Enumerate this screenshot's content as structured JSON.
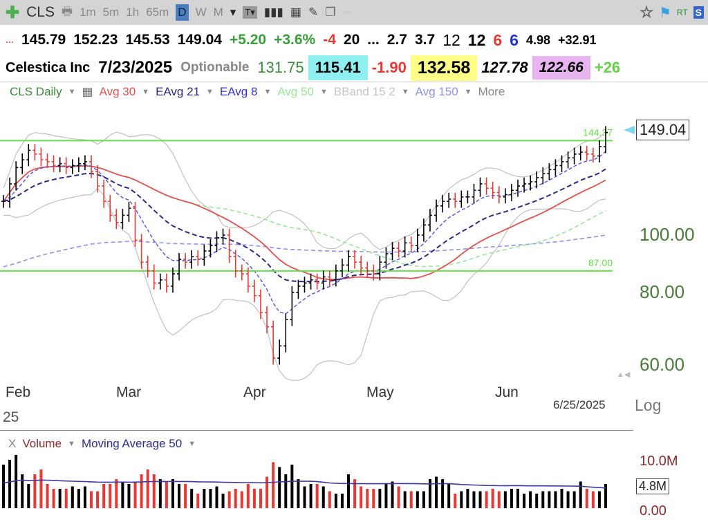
{
  "toolbar": {
    "symbol": "CLS",
    "intervals": [
      "1m",
      "5m",
      "1h",
      "65m",
      "D",
      "W",
      "M"
    ],
    "active_interval": "D",
    "rt": "RT",
    "s": "S"
  },
  "quote_row": {
    "open": "145.79",
    "high": "152.23",
    "low": "145.53",
    "close": "149.04",
    "change": "+5.20",
    "change_pct": "+3.6%",
    "v1": "-4",
    "v2": "20",
    "v3": "...",
    "v4": "2.7",
    "v5": "3.7",
    "v6": "12",
    "v7": "12",
    "v8": "6",
    "v9": "6",
    "v10": "4.98",
    "v11": "+32.91"
  },
  "info_row": {
    "company": "Celestica Inc",
    "date": "7/23/2025",
    "optionable": "Optionable",
    "f1": "131.75",
    "f2": "115.41",
    "f3": "-1.90",
    "f4": "132.58",
    "f5": "127.78",
    "f6": "122.66",
    "f7": "+26"
  },
  "indicators": {
    "chart": "CLS Daily",
    "avg30": "Avg 30",
    "eavg21": "EAvg 21",
    "eavg8": "EAvg 8",
    "avg50": "Avg 50",
    "bband": "BBand 15 2",
    "avg150": "Avg 150",
    "more": "More"
  },
  "volume_legend": {
    "close": "X",
    "volume": "Volume",
    "ma": "Moving Average 50"
  },
  "colors": {
    "up": "#000000",
    "down": "#e53935",
    "avg30": "#e05050",
    "eavg21": "#2a2a80",
    "eavg8": "#5050e0",
    "avg50": "#9be59b",
    "bband": "#c0c0c0",
    "avg150": "#9090e8",
    "hline": "#66e04a"
  },
  "chart_data": {
    "type": "ohlc-bar",
    "scale": "log",
    "ylim": [
      55,
      160
    ],
    "y_ticks": [
      "100.00",
      "80.00",
      "60.00"
    ],
    "y_tick_values": [
      100,
      80,
      60
    ],
    "x_ticks": [
      "Feb",
      "Mar",
      "Apr",
      "May",
      "Jun"
    ],
    "year_label": "25",
    "last_date": "6/25/2025",
    "scale_label": "Log",
    "last_price": "149.04",
    "hlines": [
      {
        "value": 144.37,
        "label": "144.37"
      },
      {
        "value": 87.0,
        "label": "87.00"
      }
    ],
    "close": [
      114,
      122,
      130,
      134,
      139,
      137,
      134,
      133,
      131,
      132,
      130,
      131,
      132,
      133,
      128,
      121,
      114,
      108,
      105,
      108,
      111,
      98,
      90,
      87,
      83,
      84,
      82,
      86,
      91,
      90,
      92,
      91,
      94,
      96,
      99,
      100,
      92,
      87,
      86,
      82,
      79,
      74,
      70,
      62,
      65,
      72,
      80,
      82,
      83,
      84,
      83,
      85,
      84,
      87,
      89,
      92,
      90,
      88,
      87,
      86,
      90,
      93,
      95,
      94,
      97,
      96,
      100,
      104,
      108,
      112,
      114,
      115,
      114,
      116,
      116,
      119,
      122,
      120,
      118,
      116,
      117,
      119,
      121,
      122,
      123,
      125,
      127,
      129,
      131,
      133,
      135,
      137,
      138,
      137,
      136,
      141,
      149
    ],
    "volume_ticks": [
      "10.0M",
      "4.8M",
      "0.00"
    ],
    "volume_m": [
      9,
      10,
      11,
      7,
      5,
      7,
      8,
      5,
      4,
      4,
      4,
      4.5,
      4,
      4.5,
      3.5,
      3.5,
      5,
      5,
      6,
      5.5,
      5,
      5.5,
      7,
      8,
      7,
      6,
      5.5,
      6,
      5,
      5,
      4,
      3,
      4,
      4,
      4.5,
      3,
      3.5,
      4,
      3.5,
      5,
      4,
      4,
      6.5,
      9.5,
      8.5,
      7,
      9,
      6,
      4.5,
      5,
      5,
      4.5,
      3.5,
      3,
      3,
      7,
      6,
      4.5,
      4,
      4,
      4,
      5,
      5.5,
      4.5,
      3.5,
      3.5,
      3.5,
      3.5,
      6,
      6.5,
      6,
      5,
      3,
      3.5,
      4,
      3.5,
      3.5,
      3.5,
      4,
      3.5,
      3.5,
      4,
      4,
      3,
      3.5,
      3,
      3.5,
      3.5,
      3.5,
      4,
      3.5,
      3.5,
      5.5,
      4,
      3.5,
      3.5,
      5
    ]
  }
}
